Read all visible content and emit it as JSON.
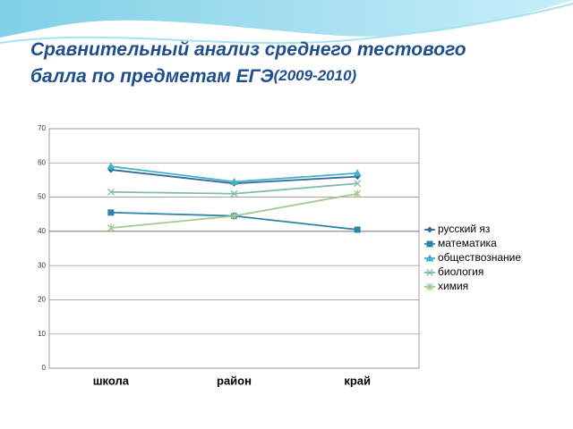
{
  "chart_data": {
    "type": "line",
    "title": "Сравнительный анализ среднего тестового балла по предметам ЕГЭ",
    "subtitle": "(2009-2010)",
    "categories": [
      "школа",
      "район",
      "край"
    ],
    "series": [
      {
        "name": "русский яз",
        "color": "#36699a",
        "marker": "diamond",
        "values": [
          58,
          54,
          56
        ]
      },
      {
        "name": "математика",
        "color": "#2a87a8",
        "marker": "square",
        "values": [
          45.5,
          44.5,
          40.5
        ]
      },
      {
        "name": "обществознание",
        "color": "#3db3c9",
        "marker": "triangle",
        "values": [
          59,
          54.5,
          57
        ]
      },
      {
        "name": "биология",
        "color": "#7fbcb0",
        "marker": "x",
        "values": [
          51.5,
          51,
          54
        ]
      },
      {
        "name": "химия",
        "color": "#a3c98f",
        "marker": "star",
        "values": [
          41,
          44.5,
          51
        ]
      }
    ],
    "ylim": [
      0,
      70
    ],
    "yticks": [
      0,
      10,
      20,
      30,
      40,
      50,
      60,
      70
    ],
    "grid": true,
    "legend": "right"
  }
}
